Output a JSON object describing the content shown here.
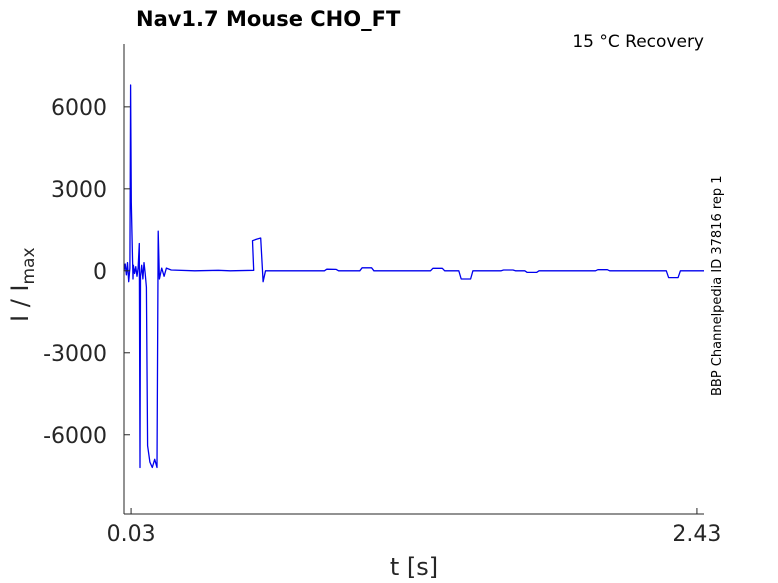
{
  "chart_data": {
    "type": "line",
    "title": "Nav1.7  Mouse  CHO_FT",
    "condition": "15 °C  Recovery",
    "side_label": "BBP Channelpedia ID 37816 rep 1",
    "xlabel": "t [s]",
    "ylabel_main": "I / I",
    "ylabel_sub": "max",
    "xlim": [
      0.0,
      2.46
    ],
    "ylim": [
      -8900,
      8300
    ],
    "xticks": [
      0.03,
      2.43
    ],
    "xtick_labels": [
      "0.03",
      "2.43"
    ],
    "yticks": [
      6000,
      3000,
      0,
      -3000,
      -6000
    ],
    "ytick_labels": [
      "6000",
      "3000",
      "0",
      "-3000",
      "-6000"
    ],
    "line_color": "#0000ee",
    "series": [
      {
        "values": [
          [
            0.0,
            0
          ],
          [
            0.005,
            250
          ],
          [
            0.01,
            -150
          ],
          [
            0.015,
            300
          ],
          [
            0.02,
            -400
          ],
          [
            0.025,
            100
          ],
          [
            0.028,
            6800
          ],
          [
            0.031,
            2500
          ],
          [
            0.035,
            800
          ],
          [
            0.038,
            -300
          ],
          [
            0.04,
            200
          ],
          [
            0.045,
            -100
          ],
          [
            0.05,
            150
          ],
          [
            0.055,
            -200
          ],
          [
            0.06,
            100
          ],
          [
            0.065,
            1000
          ],
          [
            0.068,
            -7200
          ],
          [
            0.07,
            -200
          ],
          [
            0.075,
            200
          ],
          [
            0.08,
            -300
          ],
          [
            0.085,
            300
          ],
          [
            0.09,
            -100
          ],
          [
            0.095,
            -600
          ],
          [
            0.1,
            -6400
          ],
          [
            0.11,
            -7000
          ],
          [
            0.12,
            -7200
          ],
          [
            0.13,
            -6900
          ],
          [
            0.14,
            -7200
          ],
          [
            0.145,
            1450
          ],
          [
            0.15,
            -300
          ],
          [
            0.16,
            100
          ],
          [
            0.17,
            -200
          ],
          [
            0.18,
            100
          ],
          [
            0.2,
            30
          ],
          [
            0.3,
            0
          ],
          [
            0.4,
            20
          ],
          [
            0.45,
            0
          ],
          [
            0.55,
            20
          ],
          [
            0.545,
            1100
          ],
          [
            0.56,
            1150
          ],
          [
            0.58,
            1200
          ],
          [
            0.59,
            -400
          ],
          [
            0.6,
            0
          ],
          [
            0.85,
            0
          ],
          [
            0.86,
            60
          ],
          [
            0.9,
            50
          ],
          [
            0.91,
            0
          ],
          [
            1.0,
            0
          ],
          [
            1.01,
            110
          ],
          [
            1.05,
            110
          ],
          [
            1.06,
            0
          ],
          [
            1.3,
            0
          ],
          [
            1.31,
            90
          ],
          [
            1.35,
            90
          ],
          [
            1.36,
            0
          ],
          [
            1.42,
            0
          ],
          [
            1.43,
            -300
          ],
          [
            1.47,
            -300
          ],
          [
            1.48,
            0
          ],
          [
            1.6,
            0
          ],
          [
            1.61,
            30
          ],
          [
            1.65,
            30
          ],
          [
            1.66,
            0
          ],
          [
            1.7,
            0
          ],
          [
            1.71,
            -60
          ],
          [
            1.75,
            -60
          ],
          [
            1.76,
            0
          ],
          [
            2.0,
            0
          ],
          [
            2.01,
            40
          ],
          [
            2.05,
            40
          ],
          [
            2.06,
            0
          ],
          [
            2.3,
            0
          ],
          [
            2.31,
            -250
          ],
          [
            2.35,
            -250
          ],
          [
            2.36,
            0
          ],
          [
            2.46,
            0
          ]
        ]
      }
    ]
  }
}
